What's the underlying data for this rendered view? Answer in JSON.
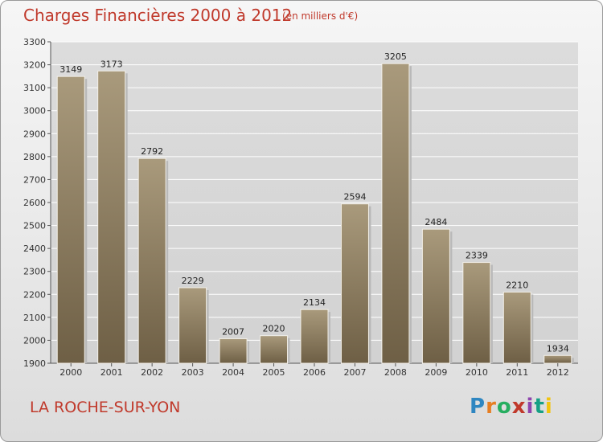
{
  "header": {
    "title": "Charges Financières 2000 à 2012",
    "subtitle": "(en milliers d'€)"
  },
  "footer": {
    "city": "LA ROCHE-SUR-YON",
    "logo_text": "Proxiti"
  },
  "colors": {
    "accent": "#c0392b",
    "bar_top": "#a99a7c",
    "bar_bottom": "#6e5f45"
  },
  "chart_data": {
    "type": "bar",
    "categories": [
      "2000",
      "2001",
      "2002",
      "2003",
      "2004",
      "2005",
      "2006",
      "2007",
      "2008",
      "2009",
      "2010",
      "2011",
      "2012"
    ],
    "values": [
      3149,
      3173,
      2792,
      2229,
      2007,
      2020,
      2134,
      2594,
      3205,
      2484,
      2339,
      2210,
      1934
    ],
    "ylim": [
      1900,
      3300
    ],
    "yticks": [
      1900,
      2000,
      2100,
      2200,
      2300,
      2400,
      2500,
      2600,
      2700,
      2800,
      2900,
      3000,
      3100,
      3200,
      3300
    ],
    "grid": true,
    "data_labels": true
  }
}
